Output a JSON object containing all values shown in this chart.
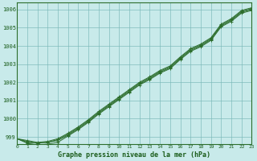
{
  "title": "Graphe pression niveau de la mer (hPa)",
  "bg_color": "#c8eaea",
  "grid_color": "#7ab8b8",
  "line_color": "#2d6e2d",
  "marker_color": "#2d6e2d",
  "text_color": "#1a5c1a",
  "xlim": [
    0,
    23
  ],
  "ylim": [
    998.6,
    1006.4
  ],
  "yticks": [
    999,
    1000,
    1001,
    1002,
    1003,
    1004,
    1005,
    1006
  ],
  "xticks": [
    0,
    1,
    2,
    3,
    4,
    5,
    6,
    7,
    8,
    9,
    10,
    11,
    12,
    13,
    14,
    15,
    16,
    17,
    18,
    19,
    20,
    21,
    22,
    23
  ],
  "series": [
    [
      998.9,
      998.7,
      998.65,
      998.7,
      998.8,
      999.1,
      999.45,
      999.85,
      1000.3,
      1000.7,
      1001.1,
      1001.5,
      1001.9,
      1002.2,
      1002.55,
      1002.8,
      1003.3,
      1003.75,
      1004.0,
      1004.35,
      1005.1,
      1005.4,
      1005.85,
      1006.0
    ],
    [
      998.9,
      998.65,
      998.55,
      998.6,
      998.7,
      999.05,
      999.4,
      999.8,
      1000.25,
      1000.65,
      1001.05,
      1001.45,
      1001.85,
      1002.15,
      1002.5,
      1002.75,
      1003.25,
      1003.7,
      1003.95,
      1004.3,
      1005.05,
      1005.35,
      1005.8,
      1005.95
    ],
    [
      998.9,
      998.75,
      998.65,
      998.7,
      998.85,
      999.15,
      999.5,
      999.9,
      1000.35,
      1000.75,
      1001.15,
      1001.55,
      1001.95,
      1002.25,
      1002.6,
      1002.85,
      1003.35,
      1003.8,
      1004.05,
      1004.4,
      1005.15,
      1005.45,
      1005.9,
      1006.05
    ],
    [
      998.9,
      998.8,
      998.7,
      998.75,
      998.9,
      999.2,
      999.55,
      999.95,
      1000.4,
      1000.8,
      1001.2,
      1001.6,
      1002.0,
      1002.3,
      1002.65,
      1002.9,
      1003.4,
      1003.85,
      1004.1,
      1004.45,
      1005.2,
      1005.5,
      1005.95,
      1006.1
    ]
  ]
}
